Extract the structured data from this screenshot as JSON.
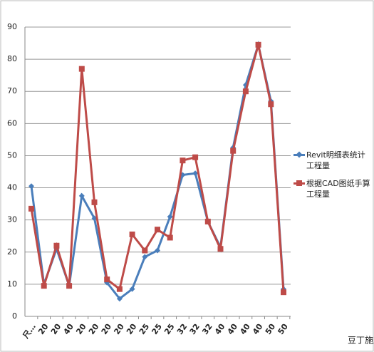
{
  "chart_data": {
    "type": "line",
    "categories": [
      "尺…",
      "20",
      "20",
      "40",
      "20",
      "20",
      "20",
      "20",
      "20",
      "25",
      "25",
      "25",
      "32",
      "32",
      "32",
      "40",
      "40",
      "40",
      "40",
      "50",
      "50"
    ],
    "series": [
      {
        "name": "Revit明细表统计工程量",
        "color": "#4a7ebb",
        "marker": "diamond",
        "values": [
          40.5,
          10,
          21,
          9.5,
          37.5,
          30.5,
          10.5,
          5.5,
          8.5,
          18.5,
          20.5,
          31,
          44,
          44.5,
          29.5,
          21.5,
          52.5,
          72,
          84.5,
          67,
          8.5
        ]
      },
      {
        "name": "根据CAD图纸手算工程量",
        "color": "#be4b48",
        "marker": "square",
        "values": [
          33.5,
          9.5,
          22,
          9.5,
          77,
          35.5,
          11.5,
          8.5,
          25.5,
          20.5,
          27,
          24.5,
          48.5,
          49.5,
          29.5,
          21,
          51.5,
          70,
          84.5,
          66,
          7.5
        ]
      }
    ],
    "ylim": [
      0,
      90
    ],
    "yticks": [
      0,
      10,
      20,
      30,
      40,
      50,
      60,
      70,
      80,
      90
    ],
    "grid": true,
    "legend": "right",
    "watermark": "豆丁施工"
  }
}
